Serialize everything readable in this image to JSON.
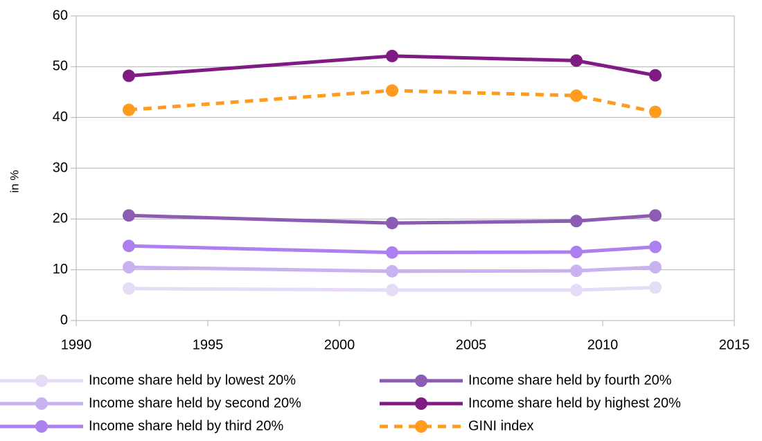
{
  "chart_data": {
    "type": "line",
    "y_label": "in %",
    "x": [
      1992,
      2002,
      2009,
      2012
    ],
    "series": [
      {
        "name": "Income share held by lowest 20%",
        "color": "#e6dcf5",
        "values": [
          6.3,
          6.0,
          6.0,
          6.5
        ]
      },
      {
        "name": "Income share held by second 20%",
        "color": "#c8b2f0",
        "values": [
          10.5,
          9.7,
          9.8,
          10.5
        ]
      },
      {
        "name": "Income share held by third 20%",
        "color": "#ad80f0",
        "values": [
          14.7,
          13.4,
          13.5,
          14.5
        ]
      },
      {
        "name": "Income share held by fourth 20%",
        "color": "#8c5cb2",
        "values": [
          20.7,
          19.2,
          19.6,
          20.7
        ]
      },
      {
        "name": "Income share held by highest 20%",
        "color": "#7e1c84",
        "values": [
          48.2,
          52.1,
          51.2,
          48.3
        ]
      },
      {
        "name": "GINI index",
        "color": "#ff9b1e",
        "dashed": true,
        "values": [
          41.5,
          45.3,
          44.3,
          41.1
        ]
      }
    ],
    "xlim": [
      1990,
      2015
    ],
    "xticks": [
      1990,
      1995,
      2000,
      2005,
      2010,
      2015
    ],
    "ylim": [
      0,
      60
    ],
    "yticks": [
      0,
      10,
      20,
      30,
      40,
      50,
      60
    ],
    "grid": true,
    "legend": "bottom"
  }
}
